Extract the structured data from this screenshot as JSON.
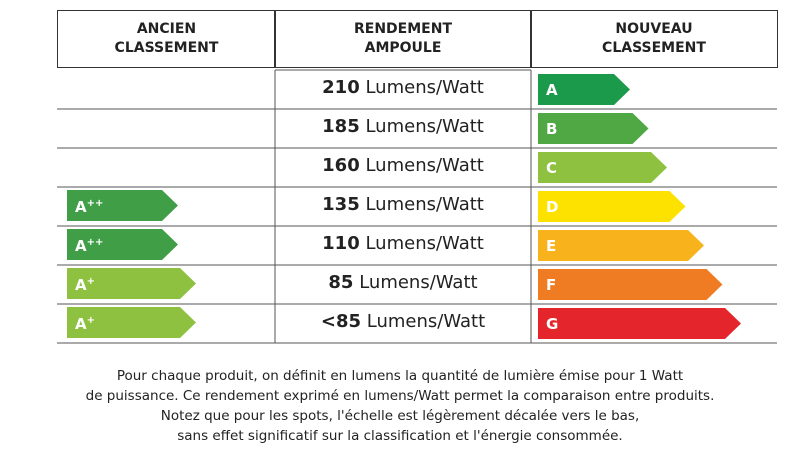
{
  "header": {
    "old": [
      "ANCIEN",
      "CLASSEMENT"
    ],
    "efficiency": [
      "RENDEMENT",
      "AMPOULE"
    ],
    "new": [
      "NOUVEAU",
      "CLASSEMENT"
    ]
  },
  "rows": [
    {
      "old": null,
      "value": "210",
      "unit": "Lumens/Watt",
      "new": {
        "label": "A",
        "color": "#1a9a4a"
      }
    },
    {
      "old": null,
      "value": "185",
      "unit": "Lumens/Watt",
      "new": {
        "label": "B",
        "color": "#4fa843"
      }
    },
    {
      "old": null,
      "value": "160",
      "unit": "Lumens/Watt",
      "new": {
        "label": "C",
        "color": "#8dc13f"
      }
    },
    {
      "old": {
        "letter": "A",
        "sup": "++",
        "color": "#3f9e46"
      },
      "value": "135",
      "unit": "Lumens/Watt",
      "new": {
        "label": "D",
        "color": "#fde200"
      }
    },
    {
      "old": {
        "letter": "A",
        "sup": "++",
        "color": "#3f9e46"
      },
      "value": "110",
      "unit": "Lumens/Watt",
      "new": {
        "label": "E",
        "color": "#f8b21c"
      }
    },
    {
      "old": {
        "letter": "A",
        "sup": "+",
        "color": "#8dc13f"
      },
      "value": "85",
      "unit": "Lumens/Watt",
      "new": {
        "label": "F",
        "color": "#ef7c22"
      }
    },
    {
      "old": {
        "letter": "A",
        "sup": "+",
        "color": "#8dc13f"
      },
      "value": "<85",
      "unit": "Lumens/Watt",
      "new": {
        "label": "G",
        "color": "#e4262c"
      }
    }
  ],
  "footnote": [
    "Pour chaque produit, on définit en lumens la quantité de lumière émise pour 1 Watt",
    "de puissance. Ce rendement exprimé en lumens/Watt permet la comparaison entre produits.",
    "Notez que pour les spots, l'échelle est légèrement décalée vers le bas,",
    "sans effet significatif sur la classification et l'énergie consommée."
  ]
}
